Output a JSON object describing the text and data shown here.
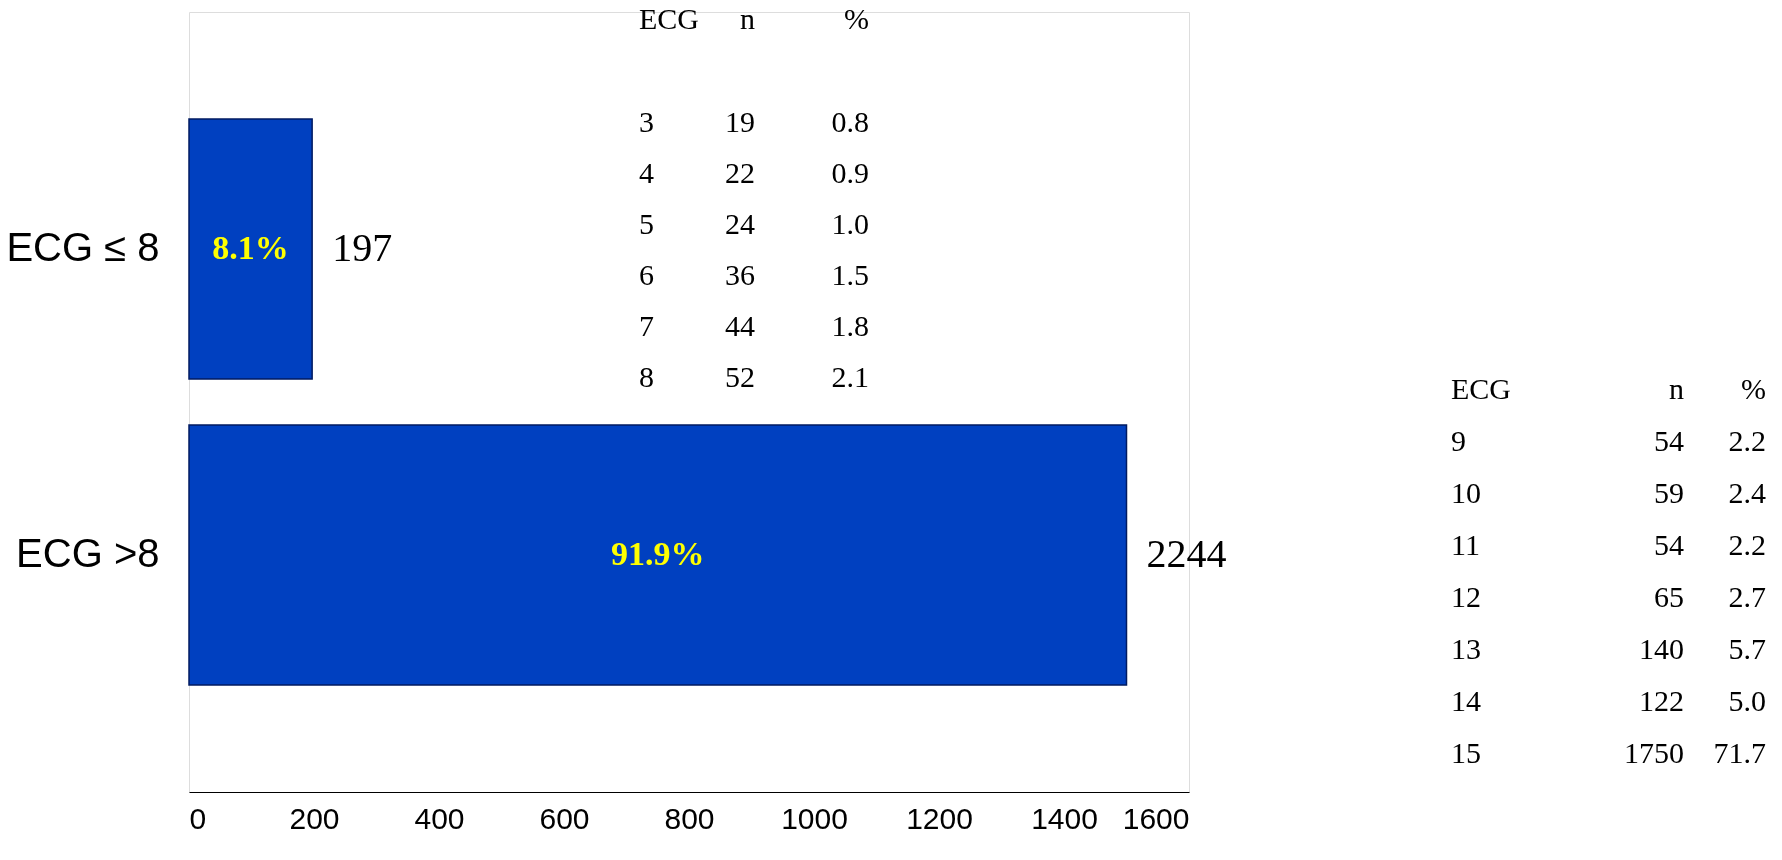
{
  "chart_data": {
    "type": "bar",
    "orientation": "horizontal",
    "categories": [
      "ECG ≤ 8",
      "ECG >8"
    ],
    "values": [
      197,
      1500
    ],
    "color": "#0040c0",
    "xlim": [
      0,
      1600
    ],
    "xticks": [
      0,
      200,
      400,
      600,
      800,
      1000,
      1200,
      1400,
      1600
    ],
    "annotations": [
      "197",
      "2244",
      "8.1%",
      "91.9%",
      "ECG n %",
      "3 19 0.8",
      "4 22 0.9",
      "5 24 1.0",
      "6 36 1.5",
      "7 44 1.8",
      "8 52 2.1",
      "ECG n %",
      "9 54 2.2",
      "10 59 2.4",
      "11 54 2.2",
      "12 65 2.7",
      "13 140 5.7",
      "14 122 5.0",
      "15 1750 71.7"
    ]
  }
}
